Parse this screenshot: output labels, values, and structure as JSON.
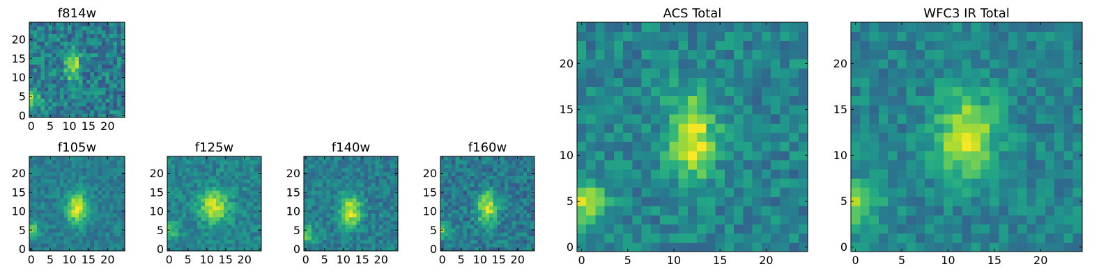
{
  "chart_data": [
    {
      "type": "heatmap",
      "title": "f814w",
      "nx": 25,
      "ny": 25,
      "xlim": [
        0,
        24
      ],
      "ylim": [
        0,
        24
      ],
      "xticks": [
        0,
        5,
        10,
        15,
        20
      ],
      "yticks": [
        0,
        5,
        10,
        15,
        20
      ],
      "colormap": "viridis",
      "features": {
        "peak": [
          11,
          13
        ],
        "sigma": [
          1.3,
          2.6
        ],
        "peak_value": 0.95,
        "background": 0.42,
        "noise": 0.18,
        "side_blob": [
          0,
          4
        ],
        "side_amp": 0.45
      }
    },
    {
      "type": "heatmap",
      "title": "f105w",
      "nx": 25,
      "ny": 25,
      "xlim": [
        0,
        24
      ],
      "ylim": [
        0,
        24
      ],
      "xticks": [
        0,
        5,
        10,
        15,
        20
      ],
      "yticks": [
        0,
        5,
        10,
        15,
        20
      ],
      "colormap": "viridis",
      "features": {
        "peak": [
          12,
          11
        ],
        "sigma": [
          2.0,
          3.0
        ],
        "peak_value": 0.95,
        "background": 0.42,
        "noise": 0.1,
        "side_blob": [
          0,
          5
        ],
        "side_amp": 0.35
      }
    },
    {
      "type": "heatmap",
      "title": "f125w",
      "nx": 25,
      "ny": 25,
      "xlim": [
        0,
        24
      ],
      "ylim": [
        0,
        24
      ],
      "xticks": [
        0,
        5,
        10,
        15,
        20
      ],
      "yticks": [
        0,
        5,
        10,
        15,
        20
      ],
      "colormap": "viridis",
      "features": {
        "peak": [
          12,
          11
        ],
        "sigma": [
          2.6,
          3.0
        ],
        "peak_value": 0.95,
        "background": 0.45,
        "noise": 0.12,
        "side_blob": [
          0,
          5
        ],
        "side_amp": 0.3
      }
    },
    {
      "type": "heatmap",
      "title": "f140w",
      "nx": 25,
      "ny": 25,
      "xlim": [
        0,
        24
      ],
      "ylim": [
        0,
        24
      ],
      "xticks": [
        0,
        5,
        10,
        15,
        20
      ],
      "yticks": [
        0,
        5,
        10,
        15,
        20
      ],
      "colormap": "viridis",
      "features": {
        "peak": [
          12,
          10
        ],
        "sigma": [
          2.0,
          3.0
        ],
        "peak_value": 0.95,
        "background": 0.42,
        "noise": 0.12,
        "side_blob": [
          0,
          4
        ],
        "side_amp": 0.4
      }
    },
    {
      "type": "heatmap",
      "title": "f160w",
      "nx": 25,
      "ny": 25,
      "xlim": [
        0,
        24
      ],
      "ylim": [
        0,
        24
      ],
      "xticks": [
        0,
        5,
        10,
        15,
        20
      ],
      "yticks": [
        0,
        5,
        10,
        15,
        20
      ],
      "colormap": "viridis",
      "features": {
        "peak": [
          12,
          11
        ],
        "sigma": [
          2.0,
          3.0
        ],
        "peak_value": 0.95,
        "background": 0.4,
        "noise": 0.14,
        "side_blob": [
          0,
          5
        ],
        "side_amp": 0.35
      }
    },
    {
      "type": "heatmap",
      "title": "ACS Total",
      "nx": 25,
      "ny": 25,
      "xlim": [
        0,
        24
      ],
      "ylim": [
        0,
        24
      ],
      "xticks": [
        0,
        5,
        10,
        15,
        20
      ],
      "yticks": [
        0,
        5,
        10,
        15,
        20
      ],
      "colormap": "viridis",
      "features": {
        "peak": [
          12,
          12
        ],
        "sigma": [
          1.8,
          3.2
        ],
        "peak_value": 0.97,
        "background": 0.45,
        "noise": 0.14,
        "side_blob": [
          0,
          5
        ],
        "side_amp": 0.45
      }
    },
    {
      "type": "heatmap",
      "title": "WFC3 IR Total",
      "nx": 25,
      "ny": 25,
      "xlim": [
        0,
        24
      ],
      "ylim": [
        0,
        24
      ],
      "xticks": [
        0,
        5,
        10,
        15,
        20
      ],
      "yticks": [
        0,
        5,
        10,
        15,
        20
      ],
      "colormap": "viridis",
      "features": {
        "peak": [
          12,
          12
        ],
        "sigma": [
          2.2,
          3.2
        ],
        "peak_value": 0.95,
        "background": 0.45,
        "noise": 0.12,
        "side_blob": [
          0,
          5
        ],
        "side_amp": 0.45
      }
    }
  ]
}
